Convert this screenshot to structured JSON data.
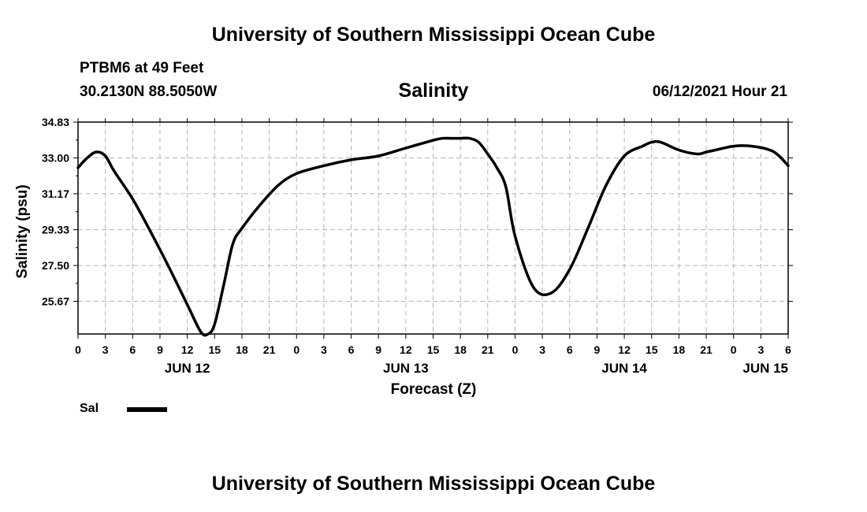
{
  "header": {
    "org_title": "University of Southern Mississippi Ocean Cube",
    "station": "PTBM6 at 49 Feet",
    "coords": "30.2130N  88.5050W",
    "datetime": "06/12/2021 Hour 21"
  },
  "footer": {
    "org_title": "University of Southern Mississippi Ocean Cube"
  },
  "chart_data": {
    "type": "line",
    "title": "Salinity",
    "ylabel": "Salinity (psu)",
    "xlabel": "Forecast (Z)",
    "ylim": [
      24.0,
      34.83
    ],
    "xlim": [
      0,
      78
    ],
    "yticks": [
      25.67,
      27.5,
      29.33,
      31.17,
      33.0,
      34.83
    ],
    "ytick_labels": [
      "25.67",
      "27.50",
      "29.33",
      "31.17",
      "33.00",
      "34.83"
    ],
    "xticks": [
      0,
      3,
      6,
      9,
      12,
      15,
      18,
      21,
      24,
      27,
      30,
      33,
      36,
      39,
      42,
      45,
      48,
      51,
      54,
      57,
      60,
      63,
      66,
      69,
      72,
      75,
      78
    ],
    "xtick_labels": [
      "0",
      "3",
      "6",
      "9",
      "12",
      "15",
      "18",
      "21",
      "0",
      "3",
      "6",
      "9",
      "12",
      "15",
      "18",
      "21",
      "0",
      "3",
      "6",
      "9",
      "12",
      "15",
      "18",
      "21",
      "0",
      "3",
      "6"
    ],
    "date_labels": [
      {
        "label": "JUN 12",
        "x": 12
      },
      {
        "label": "JUN 13",
        "x": 36
      },
      {
        "label": "JUN 14",
        "x": 60
      },
      {
        "label": "JUN 15",
        "x": 78
      }
    ],
    "grid": true,
    "legend": {
      "position": "bottom-left",
      "entries": [
        "Sal"
      ]
    },
    "series": [
      {
        "name": "Sal",
        "x": [
          0,
          1,
          2,
          3,
          4,
          6,
          8,
          10,
          12,
          13.5,
          14.3,
          15,
          16,
          17,
          18,
          20,
          22,
          24,
          27,
          30,
          33,
          36,
          39,
          40,
          41,
          42,
          43,
          44,
          45,
          46,
          47,
          48,
          50,
          52,
          54,
          56,
          58,
          60,
          62,
          63,
          64,
          66,
          68,
          69,
          70,
          72,
          74,
          76,
          77,
          78
        ],
        "y": [
          32.5,
          33.0,
          33.3,
          33.1,
          32.3,
          30.9,
          29.2,
          27.4,
          25.5,
          24.1,
          24.0,
          24.5,
          26.5,
          28.6,
          29.4,
          30.6,
          31.6,
          32.2,
          32.6,
          32.9,
          33.1,
          33.5,
          33.9,
          34.0,
          34.0,
          34.0,
          34.0,
          33.8,
          33.2,
          32.5,
          31.5,
          29.0,
          26.4,
          26.1,
          27.3,
          29.4,
          31.6,
          33.1,
          33.6,
          33.8,
          33.8,
          33.4,
          33.2,
          33.3,
          33.4,
          33.6,
          33.6,
          33.4,
          33.1,
          32.6
        ]
      }
    ]
  }
}
